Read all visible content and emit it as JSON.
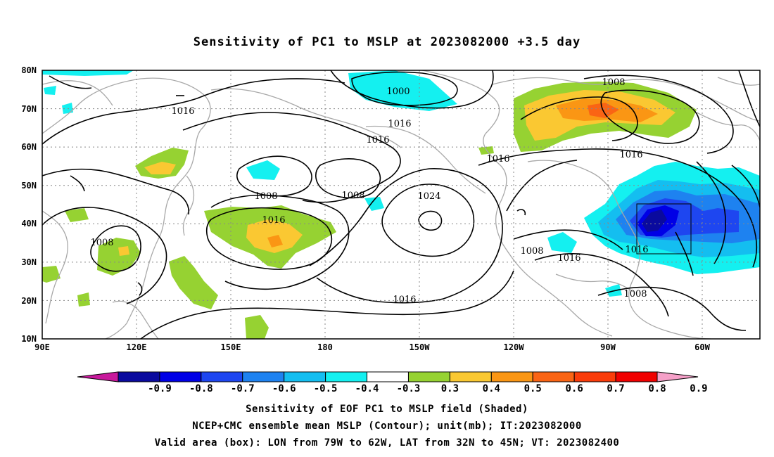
{
  "title": "Sensitivity of PC1 to MSLP at 2023082000 +3.5 day",
  "lat_labels": [
    "80N",
    "70N",
    "60N",
    "50N",
    "40N",
    "30N",
    "20N",
    "10N"
  ],
  "lon_labels": [
    "90E",
    "120E",
    "150E",
    "180",
    "150W",
    "120W",
    "90W",
    "60W"
  ],
  "contour_labels": [
    "1000",
    "1008",
    "1016",
    "1016",
    "1016",
    "1016",
    "1016",
    "1008",
    "1008",
    "1024",
    "1016",
    "1016",
    "1008",
    "1016",
    "1016",
    "1008",
    "1008"
  ],
  "colorbar": {
    "colors": [
      "#c8199c",
      "#0a0a9e",
      "#0000e6",
      "#1e46f0",
      "#1e82f0",
      "#14bef0",
      "#14f0f0",
      "#ffffff",
      "#96d232",
      "#fac832",
      "#fa9614",
      "#fa6414",
      "#fa3c0a",
      "#f00000",
      "#f5a0c8"
    ],
    "ticks": [
      "-0.9",
      "-0.8",
      "-0.7",
      "-0.6",
      "-0.5",
      "-0.4",
      "-0.3",
      "0.3",
      "0.4",
      "0.5",
      "0.6",
      "0.7",
      "0.8",
      "0.9"
    ]
  },
  "valid_box": {
    "lon_from": "79W",
    "lon_to": "62W",
    "lat_from": "32N",
    "lat_to": "45N"
  },
  "captions": {
    "line1": "Sensitivity of EOF PC1 to MSLP field (Shaded)",
    "line2": "NCEP+CMC ensemble mean MSLP (Contour); unit(mb); IT:2023082000",
    "line3": "Valid area (box): LON from 79W to 62W, LAT from 32N to 45N; VT: 2023082400"
  },
  "colors": {
    "land": "#a8a8a8",
    "contour": "#000000",
    "grid": "#888888"
  }
}
